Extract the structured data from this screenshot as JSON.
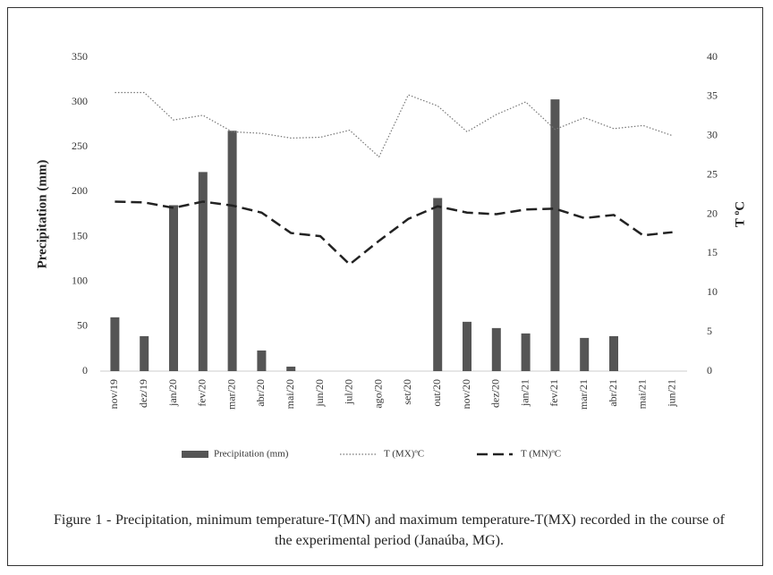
{
  "chart_data": {
    "type": "bar-line",
    "categories": [
      "nov/19",
      "dez/19",
      "jan/20",
      "fev/20",
      "mar/20",
      "abr/20",
      "mai/20",
      "jun/20",
      "jul/20",
      "ago/20",
      "set/20",
      "out/20",
      "nov/20",
      "dez/20",
      "jan/21",
      "fev/21",
      "mar/21",
      "abr/21",
      "mai/21",
      "jun/21"
    ],
    "series": [
      {
        "name": "Precipitation (mm)",
        "type": "bar",
        "color": "#555555",
        "values": [
          60,
          39,
          185,
          222,
          268,
          23,
          5,
          0,
          0,
          0,
          0,
          193,
          55,
          48,
          42,
          303,
          37,
          39,
          0,
          0
        ]
      },
      {
        "name": "T (MX)ºC",
        "type": "line",
        "axis": "y2",
        "color": "#777777",
        "style": "dotted",
        "values": [
          35.5,
          35.5,
          32.0,
          32.6,
          30.5,
          30.3,
          29.7,
          29.8,
          30.7,
          27.3,
          35.2,
          33.8,
          30.5,
          32.7,
          34.3,
          30.8,
          32.3,
          30.9,
          31.3,
          30.0
        ]
      },
      {
        "name": "T (MN)ºC",
        "type": "line",
        "axis": "y2",
        "color": "#222222",
        "style": "dashed",
        "values": [
          21.6,
          21.5,
          20.8,
          21.6,
          21.1,
          20.2,
          17.6,
          17.2,
          13.6,
          16.6,
          19.4,
          21.0,
          20.2,
          20.0,
          20.6,
          20.7,
          19.5,
          19.9,
          17.3,
          17.7
        ]
      }
    ],
    "ylabel": "Precipitation (mm)",
    "y2label": "T ºC",
    "ylim": [
      0,
      350
    ],
    "yticks": [
      0,
      50,
      100,
      150,
      200,
      250,
      300,
      350
    ],
    "y2lim": [
      0,
      40
    ],
    "y2ticks": [
      0,
      5,
      10,
      15,
      20,
      25,
      30,
      35,
      40
    ],
    "legend": "bottom"
  },
  "caption": "Figure 1 - Precipitation, minimum temperature-T(MN) and maximum temperature-T(MX) recorded in the course of the experimental period (Janaúba, MG)."
}
